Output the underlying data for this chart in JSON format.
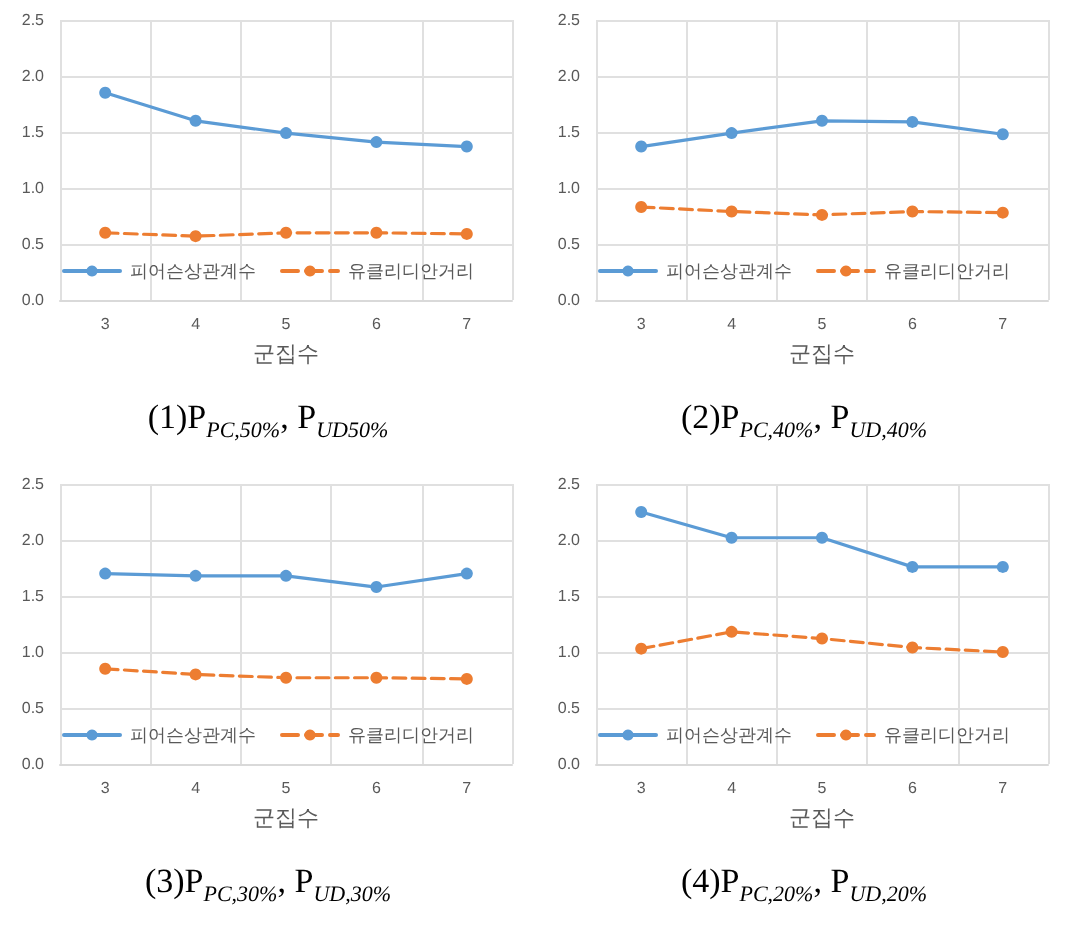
{
  "chart_data": [
    {
      "type": "line",
      "title": "(1)P$_{PC,50%}$, P$_{UD50%}$",
      "xlabel": "군집수",
      "categories": [
        "3",
        "4",
        "5",
        "6",
        "7"
      ],
      "ylim": [
        0,
        2.5
      ],
      "yticks": [
        {
          "value": 0,
          "label": "0.0"
        },
        {
          "value": 0.5,
          "label": "0.5"
        },
        {
          "value": 1,
          "label": "1.0"
        },
        {
          "value": 1.5,
          "label": "1.5"
        },
        {
          "value": 2,
          "label": "2.0"
        },
        {
          "value": 2.5,
          "label": "2.5"
        }
      ],
      "grid": true,
      "legend": "bottom",
      "marker": "circle",
      "series": [
        {
          "name": "피어슨상관계수",
          "color": "#5b9bd5",
          "line_style": "solid",
          "values": [
            1.85,
            1.6,
            1.49,
            1.41,
            1.37
          ]
        },
        {
          "name": "유클리디안거리",
          "color": "#ed7d31",
          "line_style": "dashed",
          "values": [
            0.6,
            0.57,
            0.6,
            0.6,
            0.59
          ]
        }
      ]
    },
    {
      "type": "line",
      "title": "(2)P$_{PC,40%}$, P$_{UD,40%}$",
      "xlabel": "군집수",
      "categories": [
        "3",
        "4",
        "5",
        "6",
        "7"
      ],
      "ylim": [
        0,
        2.5
      ],
      "yticks": [
        {
          "value": 0,
          "label": "0.0"
        },
        {
          "value": 0.5,
          "label": "0.5"
        },
        {
          "value": 1,
          "label": "1.0"
        },
        {
          "value": 1.5,
          "label": "1.5"
        },
        {
          "value": 2,
          "label": "2.0"
        },
        {
          "value": 2.5,
          "label": "2.5"
        }
      ],
      "grid": true,
      "legend": "bottom",
      "marker": "circle",
      "series": [
        {
          "name": "피어슨상관계수",
          "color": "#5b9bd5",
          "line_style": "solid",
          "values": [
            1.37,
            1.49,
            1.6,
            1.59,
            1.48
          ]
        },
        {
          "name": "유클리디안거리",
          "color": "#ed7d31",
          "line_style": "dashed",
          "values": [
            0.83,
            0.79,
            0.76,
            0.79,
            0.78
          ]
        }
      ]
    },
    {
      "type": "line",
      "title": "(3)P$_{PC,30%}$, P$_{UD,30%}$",
      "xlabel": "군집수",
      "categories": [
        "3",
        "4",
        "5",
        "6",
        "7"
      ],
      "ylim": [
        0,
        2.5
      ],
      "yticks": [
        {
          "value": 0,
          "label": "0.0"
        },
        {
          "value": 0.5,
          "label": "0.5"
        },
        {
          "value": 1,
          "label": "1.0"
        },
        {
          "value": 1.5,
          "label": "1.5"
        },
        {
          "value": 2,
          "label": "2.0"
        },
        {
          "value": 2.5,
          "label": "2.5"
        }
      ],
      "grid": true,
      "legend": "bottom",
      "marker": "circle",
      "series": [
        {
          "name": "피어슨상관계수",
          "color": "#5b9bd5",
          "line_style": "solid",
          "values": [
            1.7,
            1.68,
            1.68,
            1.58,
            1.7
          ]
        },
        {
          "name": "유클리디안거리",
          "color": "#ed7d31",
          "line_style": "dashed",
          "values": [
            0.85,
            0.8,
            0.77,
            0.77,
            0.76
          ]
        }
      ]
    },
    {
      "type": "line",
      "title": "(4)P$_{PC,20%}$, P$_{UD,20%}$",
      "xlabel": "군집수",
      "categories": [
        "3",
        "4",
        "5",
        "6",
        "7"
      ],
      "ylim": [
        0,
        2.5
      ],
      "yticks": [
        {
          "value": 0,
          "label": "0.0"
        },
        {
          "value": 0.5,
          "label": "0.5"
        },
        {
          "value": 1,
          "label": "1.0"
        },
        {
          "value": 1.5,
          "label": "1.5"
        },
        {
          "value": 2,
          "label": "2.0"
        },
        {
          "value": 2.5,
          "label": "2.5"
        }
      ],
      "grid": true,
      "legend": "bottom",
      "marker": "circle",
      "series": [
        {
          "name": "피어슨상관계수",
          "color": "#5b9bd5",
          "line_style": "solid",
          "values": [
            2.25,
            2.02,
            2.02,
            1.76,
            1.76
          ]
        },
        {
          "name": "유클리디안거리",
          "color": "#ed7d31",
          "line_style": "dashed",
          "values": [
            1.03,
            1.18,
            1.12,
            1.04,
            1.0
          ]
        }
      ]
    }
  ]
}
